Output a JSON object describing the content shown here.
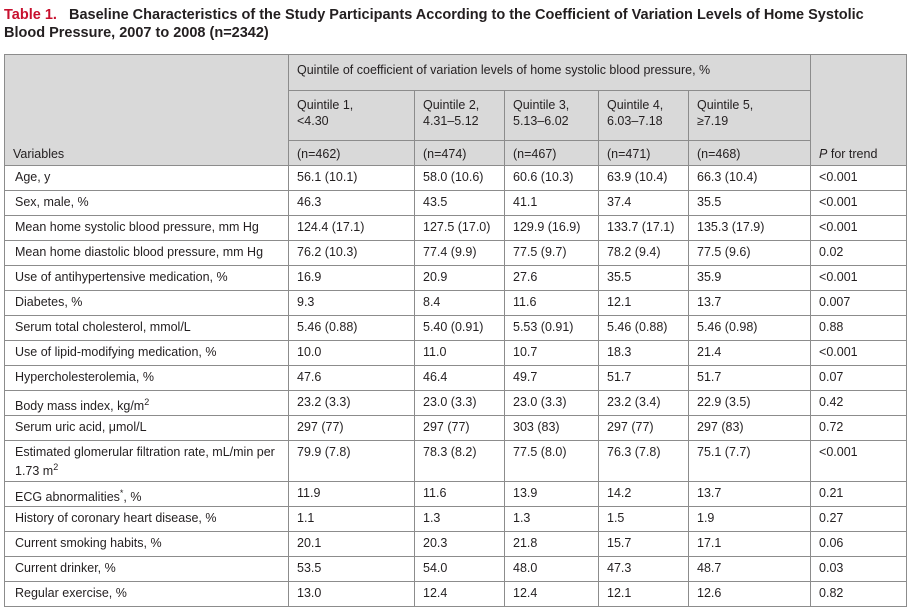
{
  "caption": {
    "label": "Table 1.",
    "title": "Baseline Characteristics of the Study Participants According to the Coefficient of Variation Levels of Home Systolic Blood Pressure, 2007 to 2008 (n=2342)"
  },
  "header": {
    "variables": "Variables",
    "span": "Quintile of coefficient of variation levels of home systolic blood pressure, %",
    "p_italic": "P",
    "p_rest": " for trend",
    "quintiles": [
      {
        "label": "Quintile 1,",
        "range": "<4.30",
        "n": "(n=462)"
      },
      {
        "label": "Quintile 2,",
        "range": "4.31–5.12",
        "n": "(n=474)"
      },
      {
        "label": "Quintile 3,",
        "range": "5.13–6.02",
        "n": "(n=467)"
      },
      {
        "label": "Quintile 4,",
        "range": "6.03–7.18",
        "n": "(n=471)"
      },
      {
        "label": "Quintile 5,",
        "range": "≥7.19",
        "n": "(n=468)"
      }
    ]
  },
  "rows": [
    {
      "v": "Age, y",
      "q": [
        "56.1 (10.1)",
        "58.0 (10.6)",
        "60.6 (10.3)",
        "63.9 (10.4)",
        "66.3 (10.4)"
      ],
      "p": "<0.001"
    },
    {
      "v": "Sex, male, %",
      "q": [
        "46.3",
        "43.5",
        "41.1",
        "37.4",
        "35.5"
      ],
      "p": "<0.001"
    },
    {
      "v": "Mean home systolic blood pressure, mm Hg",
      "q": [
        "124.4 (17.1)",
        "127.5 (17.0)",
        "129.9 (16.9)",
        "133.7 (17.1)",
        "135.3 (17.9)"
      ],
      "p": "<0.001"
    },
    {
      "v": "Mean home diastolic blood pressure, mm Hg",
      "q": [
        "76.2 (10.3)",
        "77.4 (9.9)",
        "77.5 (9.7)",
        "78.2 (9.4)",
        "77.5 (9.6)"
      ],
      "p": "0.02"
    },
    {
      "v": "Use of antihypertensive medication, %",
      "q": [
        "16.9",
        "20.9",
        "27.6",
        "35.5",
        "35.9"
      ],
      "p": "<0.001"
    },
    {
      "v": "Diabetes, %",
      "q": [
        "9.3",
        "8.4",
        "11.6",
        "12.1",
        "13.7"
      ],
      "p": "0.007"
    },
    {
      "v": "Serum total cholesterol, mmol/L",
      "q": [
        "5.46 (0.88)",
        "5.40 (0.91)",
        "5.53 (0.91)",
        "5.46 (0.88)",
        "5.46 (0.98)"
      ],
      "p": "0.88"
    },
    {
      "v": "Use of lipid-modifying medication, %",
      "q": [
        "10.0",
        "11.0",
        "10.7",
        "18.3",
        "21.4"
      ],
      "p": "<0.001"
    },
    {
      "v": "Hypercholesterolemia, %",
      "q": [
        "47.6",
        "46.4",
        "49.7",
        "51.7",
        "51.7"
      ],
      "p": "0.07"
    },
    {
      "v": "Body mass index, kg/m",
      "sup": "2",
      "q": [
        "23.2 (3.3)",
        "23.0 (3.3)",
        "23.0 (3.3)",
        "23.2 (3.4)",
        "22.9 (3.5)"
      ],
      "p": "0.42"
    },
    {
      "v": "Serum uric acid, μmol/L",
      "q": [
        "297 (77)",
        "297 (77)",
        "303 (83)",
        "297 (77)",
        "297 (83)"
      ],
      "p": "0.72"
    },
    {
      "v": "Estimated glomerular filtration rate, mL/min per 1.73 m",
      "sup": "2",
      "tall": true,
      "q": [
        "79.9 (7.8)",
        "78.3 (8.2)",
        "77.5 (8.0)",
        "76.3 (7.8)",
        "75.1 (7.7)"
      ],
      "p": "<0.001"
    },
    {
      "v": "ECG abnormalities",
      "sup": "*",
      "v_after": ", %",
      "q": [
        "11.9",
        "11.6",
        "13.9",
        "14.2",
        "13.7"
      ],
      "p": "0.21"
    },
    {
      "v": "History of coronary heart disease, %",
      "q": [
        "1.1",
        "1.3",
        "1.3",
        "1.5",
        "1.9"
      ],
      "p": "0.27"
    },
    {
      "v": "Current smoking habits, %",
      "q": [
        "20.1",
        "20.3",
        "21.8",
        "15.7",
        "17.1"
      ],
      "p": "0.06"
    },
    {
      "v": "Current drinker, %",
      "q": [
        "53.5",
        "54.0",
        "48.0",
        "47.3",
        "48.7"
      ],
      "p": "0.03"
    },
    {
      "v": "Regular exercise, %",
      "q": [
        "13.0",
        "12.4",
        "12.4",
        "12.1",
        "12.6"
      ],
      "p": "0.82"
    }
  ]
}
